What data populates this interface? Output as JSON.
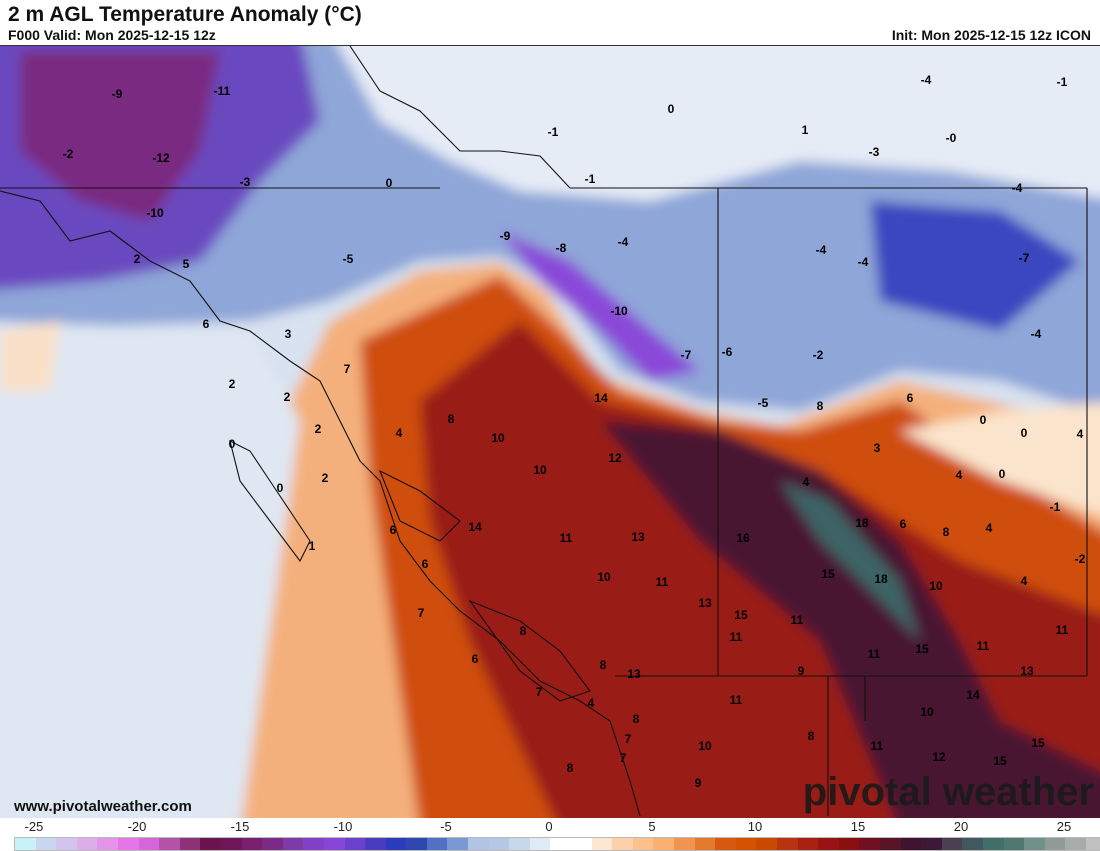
{
  "header": {
    "title": "2 m AGL Temperature Anomaly (°C)",
    "valid": "F000 Valid: Mon 2025-12-15 12z",
    "init": "Init: Mon 2025-12-15 12z ICON"
  },
  "map": {
    "contour_labels": [
      "-9",
      "-11",
      "-2",
      "-12",
      "-3",
      "0",
      "-10",
      "2",
      "5",
      "-5",
      "-9",
      "-8",
      "-4",
      "-1",
      "-1",
      "0",
      "1",
      "-3",
      "-4",
      "-0",
      "-1",
      "-4",
      "-4",
      "-4",
      "-7",
      "-4",
      "-10",
      "-7",
      "-6",
      "-2",
      "-5",
      "8",
      "6",
      "6",
      "3",
      "7",
      "2",
      "2",
      "2",
      "0",
      "2",
      "0",
      "1",
      "4",
      "8",
      "10",
      "14",
      "10",
      "12",
      "3",
      "0",
      "0",
      "4",
      "4",
      "0",
      "4",
      "14",
      "6",
      "11",
      "13",
      "16",
      "18",
      "6",
      "8",
      "4",
      "-1",
      "-2",
      "6",
      "10",
      "11",
      "15",
      "18",
      "10",
      "4",
      "7",
      "13",
      "15",
      "11",
      "11",
      "8",
      "6",
      "8",
      "13",
      "9",
      "11",
      "15",
      "11",
      "11",
      "13",
      "7",
      "4",
      "11",
      "14",
      "10",
      "8",
      "7",
      "8",
      "10",
      "11",
      "15",
      "7",
      "8",
      "12",
      "9",
      "15"
    ]
  },
  "footer": {
    "url": "www.pivotalweather.com",
    "brand": "pivotal weather"
  },
  "colorbar": {
    "ticks": [
      "-25",
      "-20",
      "-15",
      "-10",
      "-5",
      "0",
      "5",
      "10",
      "15",
      "20",
      "25"
    ],
    "tick_values": [
      -25,
      -20,
      -15,
      -10,
      -5,
      0,
      5,
      10,
      15,
      20,
      25
    ],
    "colors": [
      "#c8f2f7",
      "#c9d6f0",
      "#d5c3ef",
      "#dcaee8",
      "#e394e8",
      "#e676e6",
      "#d565d8",
      "#b452a8",
      "#8e3278",
      "#6b1450",
      "#6e1658",
      "#782070",
      "#7c2a88",
      "#803aa8",
      "#8040c8",
      "#8846d8",
      "#6a40cc",
      "#4a3cc0",
      "#2a3cbc",
      "#2e48b0",
      "#5470c4",
      "#7a98d4",
      "#b0c4e4",
      "#b4c8e6",
      "#c8d8ec",
      "#e0eaf6",
      "#ffffff",
      "#ffffff",
      "#fde6d2",
      "#fcd0a8",
      "#fbc08c",
      "#f9b070",
      "#f09450",
      "#e47a30",
      "#d85a10",
      "#d45200",
      "#c84a00",
      "#b83410",
      "#a82010",
      "#981414",
      "#8a1010",
      "#701020",
      "#5a1428",
      "#401430",
      "#3e1838",
      "#4a4050",
      "#405860",
      "#407068",
      "#507870",
      "#70908a",
      "#909a98",
      "#a8aca8",
      "#c0c0c0",
      "#d8ccc4"
    ]
  }
}
